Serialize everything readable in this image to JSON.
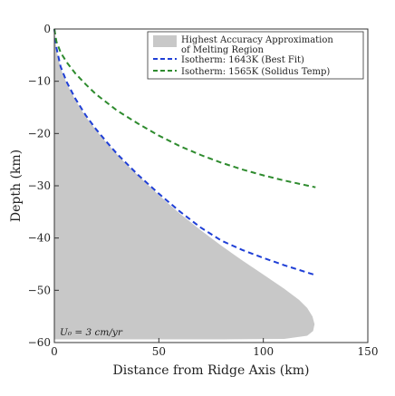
{
  "chart_data": {
    "type": "area",
    "xlabel": "Distance from Ridge Axis (km)",
    "ylabel": "Depth (km)",
    "xlim": [
      0,
      150
    ],
    "ylim": [
      -60,
      0
    ],
    "xticks": [
      0,
      50,
      100,
      150
    ],
    "yticks": [
      0,
      -10,
      -20,
      -30,
      -40,
      -50,
      -60
    ],
    "grid": false,
    "legend_placement": "top-right",
    "annotation": "U₀ = 3 cm/yr",
    "series": [
      {
        "name": "Highest Accuracy Approximation of Melting Region",
        "kind": "area",
        "color": "#c8c8c8",
        "points": [
          [
            0,
            0
          ],
          [
            1,
            -4
          ],
          [
            3,
            -7.5
          ],
          [
            6,
            -10.5
          ],
          [
            10,
            -13.6
          ],
          [
            15,
            -16.8
          ],
          [
            20,
            -19.4
          ],
          [
            25,
            -21.8
          ],
          [
            30,
            -24.0
          ],
          [
            35,
            -26.1
          ],
          [
            40,
            -28.0
          ],
          [
            50,
            -31.8
          ],
          [
            60,
            -35.3
          ],
          [
            70,
            -38.5
          ],
          [
            80,
            -41.5
          ],
          [
            90,
            -44.3
          ],
          [
            100,
            -47.0
          ],
          [
            110,
            -49.7
          ],
          [
            117,
            -51.8
          ],
          [
            121,
            -53.4
          ],
          [
            123.5,
            -55.0
          ],
          [
            124.5,
            -56.5
          ],
          [
            123.8,
            -57.8
          ],
          [
            121,
            -58.7
          ],
          [
            110,
            -59.3
          ],
          [
            80,
            -59.4
          ],
          [
            40,
            -59.4
          ],
          [
            0,
            -59.4
          ]
        ]
      },
      {
        "name": "Isotherm: 1643K (Best Fit)",
        "kind": "dashed-line",
        "color": "#1f3fd6",
        "points": [
          [
            0,
            0
          ],
          [
            1,
            -3.6
          ],
          [
            3,
            -7.2
          ],
          [
            6,
            -10.2
          ],
          [
            10,
            -13.3
          ],
          [
            15,
            -16.5
          ],
          [
            20,
            -19.2
          ],
          [
            25,
            -21.6
          ],
          [
            30,
            -23.9
          ],
          [
            40,
            -27.9
          ],
          [
            50,
            -31.5
          ],
          [
            60,
            -34.9
          ],
          [
            70,
            -38.0
          ],
          [
            80,
            -40.5
          ],
          [
            90,
            -42.3
          ],
          [
            100,
            -43.8
          ],
          [
            110,
            -45.2
          ],
          [
            125,
            -47.1
          ]
        ]
      },
      {
        "name": "Isotherm: 1565K (Solidus Temp)",
        "kind": "dashed-line",
        "color": "#2e8b2e",
        "points": [
          [
            0,
            0
          ],
          [
            1,
            -2.4
          ],
          [
            3,
            -4.5
          ],
          [
            6,
            -6.4
          ],
          [
            10,
            -8.5
          ],
          [
            15,
            -10.6
          ],
          [
            20,
            -12.5
          ],
          [
            30,
            -15.6
          ],
          [
            40,
            -18.1
          ],
          [
            50,
            -20.4
          ],
          [
            60,
            -22.4
          ],
          [
            70,
            -24.1
          ],
          [
            80,
            -25.6
          ],
          [
            90,
            -26.9
          ],
          [
            100,
            -28.0
          ],
          [
            110,
            -29.0
          ],
          [
            125,
            -30.3
          ]
        ]
      }
    ]
  }
}
